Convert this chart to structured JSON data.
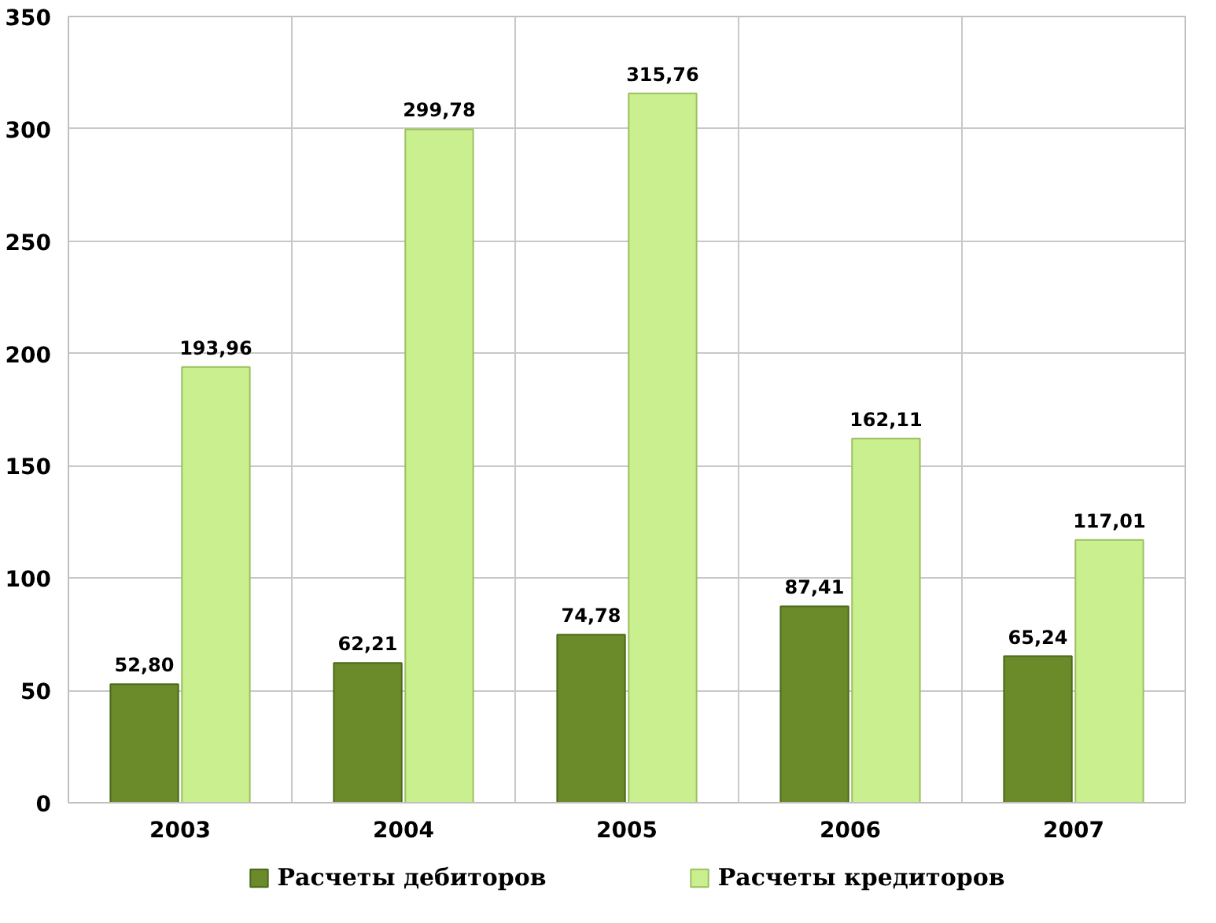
{
  "chart_data": {
    "type": "bar",
    "categories": [
      "2003",
      "2004",
      "2005",
      "2006",
      "2007"
    ],
    "series": [
      {
        "name": "Расчеты дебиторов",
        "color": "#6b8a2a",
        "values": [
          52.8,
          62.21,
          74.78,
          87.41,
          65.24
        ],
        "value_labels": [
          "52,80",
          "62,21",
          "74,78",
          "87,41",
          "65,24"
        ]
      },
      {
        "name": "Расчеты кредиторов",
        "color": "#c9ef8f",
        "values": [
          193.96,
          299.78,
          315.76,
          162.11,
          117.01
        ],
        "value_labels": [
          "193,96",
          "299,78",
          "315,76",
          "162,11",
          "117,01"
        ]
      }
    ],
    "ylim": [
      0,
      350
    ],
    "yticks": [
      0,
      50,
      100,
      150,
      200,
      250,
      300,
      350
    ],
    "grid": true,
    "legend": "bottom"
  }
}
